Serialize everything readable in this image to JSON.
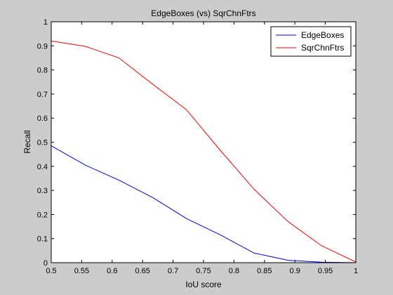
{
  "chart_data": {
    "type": "line",
    "title": "EdgeBoxes (vs) SqrChnFtrs",
    "xlabel": "IoU score",
    "ylabel": "Recall",
    "xlim": [
      0.5,
      1
    ],
    "ylim": [
      0,
      1
    ],
    "xticks": [
      "0.5",
      "0.55",
      "0.6",
      "0.65",
      "0.7",
      "0.75",
      "0.8",
      "0.85",
      "0.9",
      "0.95",
      "1"
    ],
    "yticks": [
      "0",
      "0.1",
      "0.2",
      "0.3",
      "0.4",
      "0.5",
      "0.6",
      "0.7",
      "0.8",
      "0.9",
      "1"
    ],
    "grid": false,
    "legend_position": "top-right",
    "series": [
      {
        "name": "EdgeBoxes",
        "color": "#0000ff",
        "x": [
          0.5,
          0.556,
          0.611,
          0.667,
          0.722,
          0.778,
          0.833,
          0.889,
          0.944,
          1.0
        ],
        "y": [
          0.485,
          0.405,
          0.343,
          0.27,
          0.183,
          0.115,
          0.04,
          0.01,
          0.002,
          0.0
        ]
      },
      {
        "name": "SqrChnFtrs",
        "color": "#ff0000",
        "x": [
          0.5,
          0.556,
          0.611,
          0.667,
          0.722,
          0.778,
          0.833,
          0.889,
          0.944,
          1.0
        ],
        "y": [
          0.92,
          0.898,
          0.85,
          0.74,
          0.635,
          0.465,
          0.305,
          0.17,
          0.07,
          0.003
        ]
      }
    ]
  }
}
